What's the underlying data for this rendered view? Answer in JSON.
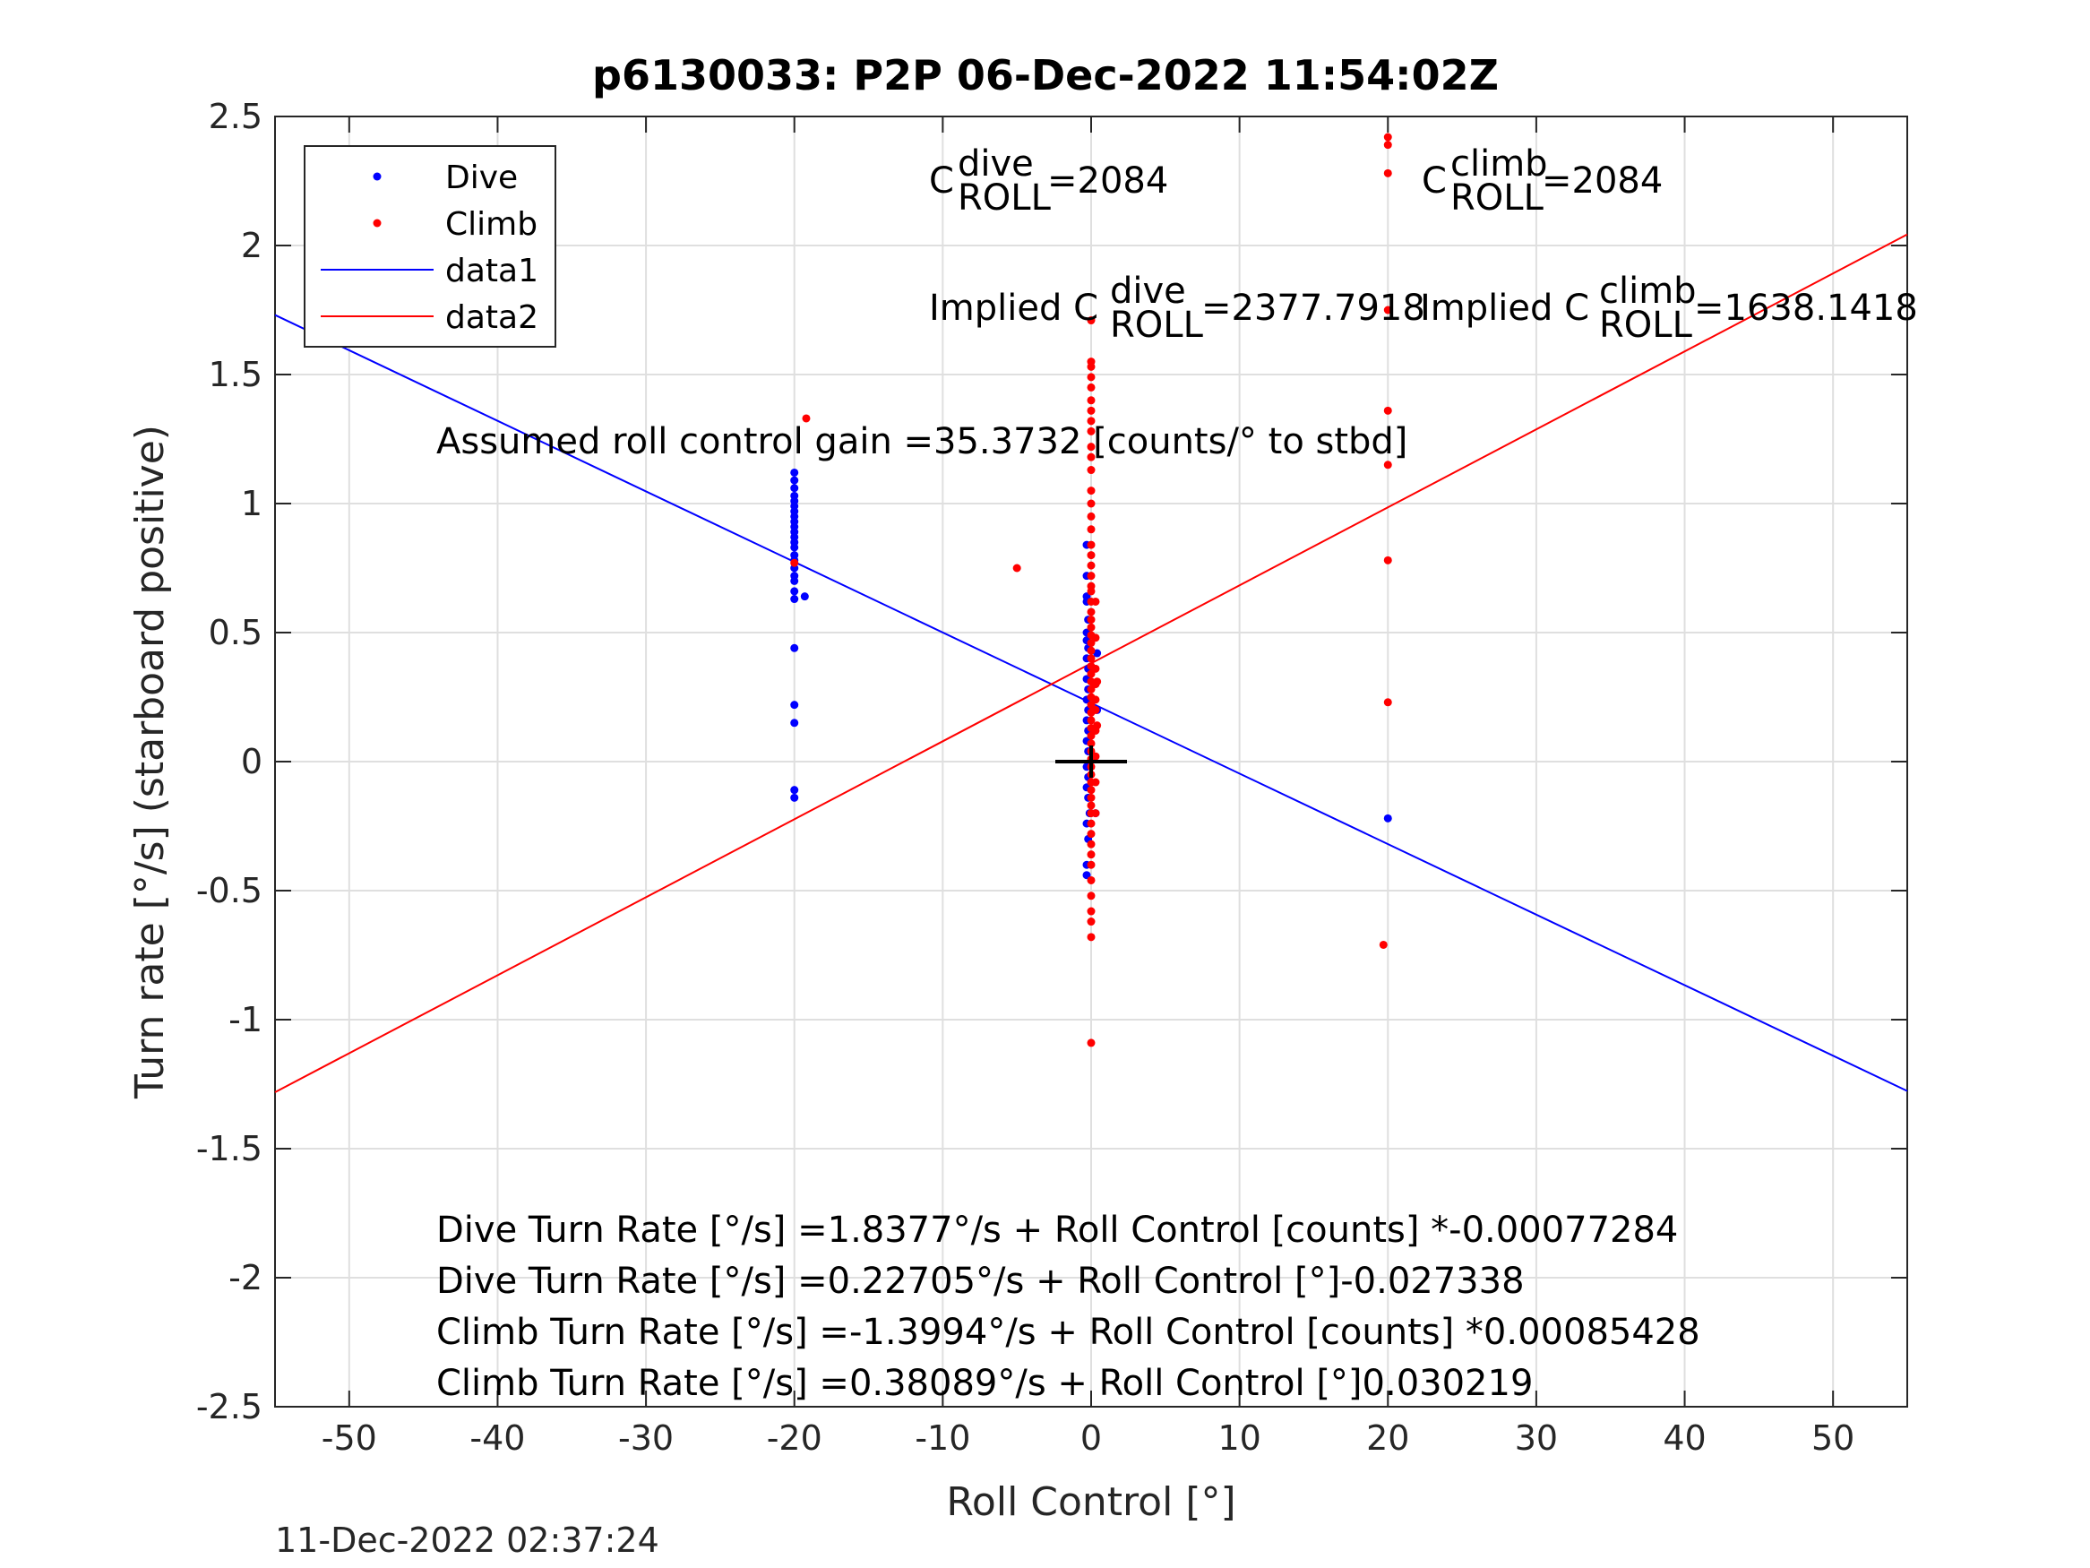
{
  "chart_data": {
    "type": "scatter",
    "title": "p6130033: P2P 06-Dec-2022 11:54:02Z",
    "xlabel": "Roll Control [°]",
    "ylabel": "Turn rate [°/s] (starboard positive)",
    "xlim": [
      -55,
      55
    ],
    "ylim": [
      -2.5,
      2.5
    ],
    "xticks": [
      -50,
      -40,
      -30,
      -20,
      -10,
      0,
      10,
      20,
      30,
      40,
      50
    ],
    "yticks": [
      2.5,
      2,
      1.5,
      1,
      0.5,
      0,
      -0.5,
      -1,
      -1.5,
      -2,
      -2.5
    ],
    "grid": true,
    "legend": {
      "position": "top-left",
      "entries": [
        {
          "label": "Dive",
          "kind": "marker",
          "color": "#0000ff"
        },
        {
          "label": "Climb",
          "kind": "marker",
          "color": "#ff0000"
        },
        {
          "label": "data1",
          "kind": "line",
          "color": "#0000ff"
        },
        {
          "label": "data2",
          "kind": "line",
          "color": "#ff0000"
        }
      ]
    },
    "series": [
      {
        "name": "Dive",
        "color": "#0000ff",
        "points": [
          [
            -20,
            1.12
          ],
          [
            -20,
            1.09
          ],
          [
            -20,
            1.06
          ],
          [
            -20,
            1.03
          ],
          [
            -20,
            1.01
          ],
          [
            -20,
            0.99
          ],
          [
            -20,
            0.97
          ],
          [
            -20,
            0.95
          ],
          [
            -20,
            0.93
          ],
          [
            -20,
            0.91
          ],
          [
            -20,
            0.89
          ],
          [
            -20,
            0.87
          ],
          [
            -20,
            0.85
          ],
          [
            -20,
            0.83
          ],
          [
            -20,
            0.8
          ],
          [
            -20,
            0.78
          ],
          [
            -20,
            0.75
          ],
          [
            -20,
            0.72
          ],
          [
            -20,
            0.7
          ],
          [
            -20,
            0.66
          ],
          [
            -20,
            0.63
          ],
          [
            -19.3,
            0.64
          ],
          [
            -20,
            0.44
          ],
          [
            -20,
            0.22
          ],
          [
            -20,
            0.15
          ],
          [
            -20,
            -0.11
          ],
          [
            -20,
            -0.14
          ],
          [
            -0.3,
            0.84
          ],
          [
            -0.3,
            0.72
          ],
          [
            -0.3,
            0.64
          ],
          [
            -0.3,
            0.62
          ],
          [
            -0.2,
            0.55
          ],
          [
            -0.3,
            0.5
          ],
          [
            -0.3,
            0.47
          ],
          [
            -0.2,
            0.44
          ],
          [
            -0.3,
            0.4
          ],
          [
            -0.2,
            0.36
          ],
          [
            -0.3,
            0.32
          ],
          [
            -0.2,
            0.28
          ],
          [
            -0.3,
            0.24
          ],
          [
            -0.2,
            0.2
          ],
          [
            -0.3,
            0.16
          ],
          [
            -0.2,
            0.12
          ],
          [
            -0.3,
            0.08
          ],
          [
            -0.2,
            0.04
          ],
          [
            -0.3,
            -0.02
          ],
          [
            -0.2,
            -0.06
          ],
          [
            -0.3,
            -0.1
          ],
          [
            -0.2,
            -0.14
          ],
          [
            -0.1,
            -0.2
          ],
          [
            -0.3,
            -0.24
          ],
          [
            -0.2,
            -0.3
          ],
          [
            -0.3,
            -0.4
          ],
          [
            -0.3,
            -0.44
          ],
          [
            0.4,
            0.42
          ],
          [
            0.4,
            0.2
          ],
          [
            0.3,
            -0.2
          ],
          [
            20,
            -0.22
          ]
        ]
      },
      {
        "name": "Climb",
        "color": "#ff0000",
        "points": [
          [
            -19.2,
            1.33
          ],
          [
            -20,
            0.77
          ],
          [
            -5,
            0.75
          ],
          [
            0,
            1.71
          ],
          [
            0,
            1.55
          ],
          [
            0,
            1.53
          ],
          [
            0,
            1.49
          ],
          [
            0,
            1.45
          ],
          [
            0,
            1.4
          ],
          [
            0,
            1.36
          ],
          [
            0,
            1.32
          ],
          [
            0,
            1.28
          ],
          [
            0,
            1.22
          ],
          [
            0,
            1.18
          ],
          [
            0,
            1.13
          ],
          [
            0,
            1.05
          ],
          [
            0,
            1.0
          ],
          [
            0,
            0.95
          ],
          [
            0,
            0.9
          ],
          [
            0,
            0.84
          ],
          [
            0,
            0.8
          ],
          [
            0,
            0.76
          ],
          [
            0,
            0.72
          ],
          [
            0,
            0.68
          ],
          [
            0,
            0.66
          ],
          [
            0,
            0.62
          ],
          [
            0,
            0.58
          ],
          [
            0,
            0.55
          ],
          [
            0,
            0.52
          ],
          [
            0,
            0.49
          ],
          [
            0,
            0.46
          ],
          [
            0,
            0.43
          ],
          [
            0,
            0.4
          ],
          [
            0,
            0.37
          ],
          [
            0,
            0.34
          ],
          [
            0,
            0.31
          ],
          [
            0,
            0.28
          ],
          [
            0,
            0.25
          ],
          [
            0,
            0.22
          ],
          [
            0,
            0.19
          ],
          [
            0,
            0.16
          ],
          [
            0,
            0.13
          ],
          [
            0,
            0.1
          ],
          [
            0,
            0.07
          ],
          [
            0,
            0.04
          ],
          [
            0,
            0.01
          ],
          [
            0,
            -0.02
          ],
          [
            0,
            -0.05
          ],
          [
            0,
            -0.08
          ],
          [
            0,
            -0.11
          ],
          [
            0,
            -0.14
          ],
          [
            0,
            -0.17
          ],
          [
            0,
            -0.2
          ],
          [
            0,
            -0.24
          ],
          [
            0,
            -0.28
          ],
          [
            0,
            -0.32
          ],
          [
            0,
            -0.36
          ],
          [
            0,
            -0.4
          ],
          [
            0,
            -0.46
          ],
          [
            0,
            -0.52
          ],
          [
            0,
            -0.58
          ],
          [
            0,
            -0.62
          ],
          [
            0,
            -0.68
          ],
          [
            0,
            -1.09
          ],
          [
            0.3,
            0.62
          ],
          [
            0.3,
            0.48
          ],
          [
            0.3,
            0.36
          ],
          [
            0.3,
            0.3
          ],
          [
            0.3,
            0.24
          ],
          [
            0.3,
            0.2
          ],
          [
            0.3,
            0.12
          ],
          [
            0.3,
            0.02
          ],
          [
            0.3,
            -0.08
          ],
          [
            0.3,
            -0.2
          ],
          [
            0.4,
            0.31
          ],
          [
            0.4,
            0.14
          ],
          [
            20,
            2.42
          ],
          [
            20,
            2.39
          ],
          [
            20,
            2.28
          ],
          [
            20,
            1.75
          ],
          [
            20,
            1.36
          ],
          [
            20,
            1.15
          ],
          [
            20,
            0.78
          ],
          [
            20,
            0.23
          ],
          [
            19.7,
            -0.71
          ]
        ]
      }
    ],
    "fit_lines": [
      {
        "name": "data1",
        "color": "#0000ff",
        "intercept": 0.22705,
        "slope": -0.027338
      },
      {
        "name": "data2",
        "color": "#ff0000",
        "intercept": 0.38089,
        "slope": 0.030219
      }
    ],
    "center_marker": {
      "x": 0,
      "y": 0,
      "symbol": "+",
      "color": "#000000"
    },
    "annotations": {
      "c_roll_dive": {
        "base": "C",
        "sup": "dive",
        "sub": "ROLL",
        "value": "=2084"
      },
      "c_roll_climb": {
        "base": "C",
        "sup": "climb",
        "sub": "ROLL",
        "value": "=2084"
      },
      "implied_dive": {
        "base": "Implied C",
        "sup": "dive",
        "sub": "ROLL",
        "value": "=2377.7918"
      },
      "implied_climb": {
        "base": "Implied C",
        "sup": "climb",
        "sub": "ROLL",
        "value": "=1638.1418"
      },
      "gain": "Assumed roll control gain =35.3732 [counts/° to stbd]",
      "eq1": "Dive Turn Rate [°/s] =1.8377°/s + Roll Control [counts] *-0.00077284",
      "eq2": "Dive Turn Rate [°/s] =0.22705°/s + Roll Control [°]-0.027338",
      "eq3": "Climb Turn Rate [°/s] =-1.3994°/s + Roll Control [counts] *0.00085428",
      "eq4": "Climb Turn Rate [°/s] =0.38089°/s + Roll Control [°]0.030219"
    },
    "footer_timestamp": "11-Dec-2022 02:37:24"
  }
}
